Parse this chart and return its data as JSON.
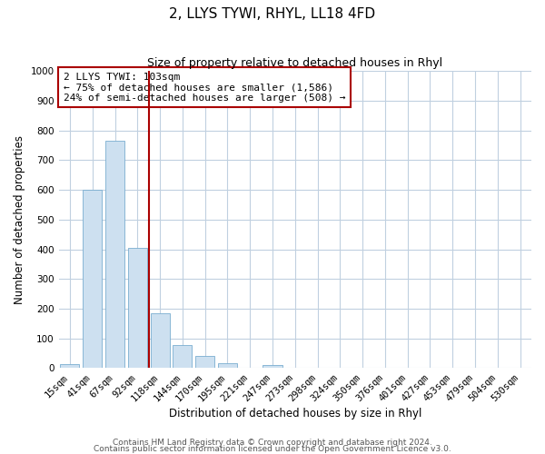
{
  "title": "2, LLYS TYWI, RHYL, LL18 4FD",
  "subtitle": "Size of property relative to detached houses in Rhyl",
  "xlabel": "Distribution of detached houses by size in Rhyl",
  "ylabel": "Number of detached properties",
  "categories": [
    "15sqm",
    "41sqm",
    "67sqm",
    "92sqm",
    "118sqm",
    "144sqm",
    "170sqm",
    "195sqm",
    "221sqm",
    "247sqm",
    "273sqm",
    "298sqm",
    "324sqm",
    "350sqm",
    "376sqm",
    "401sqm",
    "427sqm",
    "453sqm",
    "479sqm",
    "504sqm",
    "530sqm"
  ],
  "values": [
    15,
    600,
    765,
    405,
    185,
    78,
    40,
    18,
    0,
    12,
    0,
    0,
    0,
    0,
    0,
    0,
    0,
    0,
    0,
    0,
    0
  ],
  "bar_color": "#cde0f0",
  "bar_edge_color": "#7aaed0",
  "vline_color": "#aa0000",
  "vline_x": 3.5,
  "annotation_box_text": "2 LLYS TYWI: 103sqm\n← 75% of detached houses are smaller (1,586)\n24% of semi-detached houses are larger (508) →",
  "annotation_box_edgecolor": "#aa0000",
  "annotation_box_facecolor": "white",
  "ylim": [
    0,
    1000
  ],
  "yticks": [
    0,
    100,
    200,
    300,
    400,
    500,
    600,
    700,
    800,
    900,
    1000
  ],
  "fig_bg_color": "white",
  "plot_bg_color": "white",
  "grid_color": "#c0d0e0",
  "title_fontsize": 11,
  "subtitle_fontsize": 9,
  "axis_label_fontsize": 8.5,
  "tick_fontsize": 7.5,
  "ann_fontsize": 8,
  "footer_fontsize": 6.5,
  "footer_line1": "Contains HM Land Registry data © Crown copyright and database right 2024.",
  "footer_line2": "Contains public sector information licensed under the Open Government Licence v3.0."
}
